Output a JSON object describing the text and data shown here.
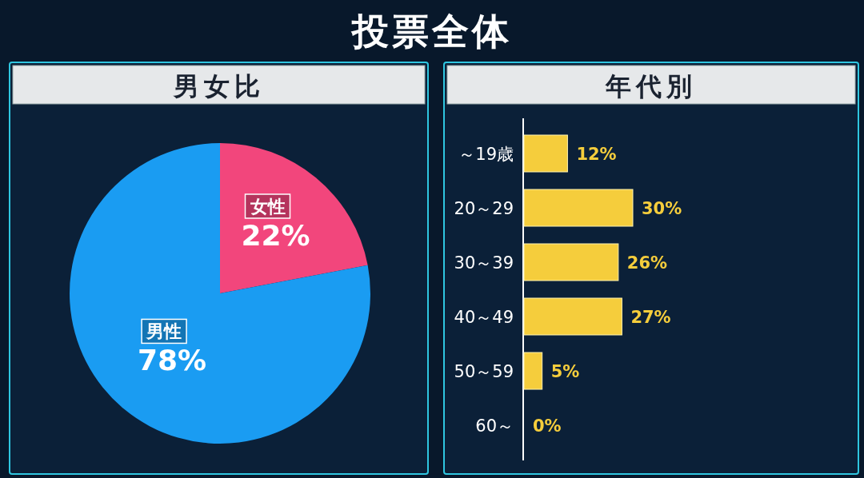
{
  "chart_data": [
    {
      "type": "pie",
      "title": "投票全体",
      "subtitle": "男女比",
      "categories": [
        "女性",
        "男性"
      ],
      "values": [
        22,
        78
      ],
      "colors": [
        "#f2467c",
        "#1a9cf2"
      ],
      "value_labels": [
        "22%",
        "78%"
      ]
    },
    {
      "type": "bar",
      "orientation": "horizontal",
      "subtitle": "年代別",
      "categories": [
        "～19歳",
        "20～29",
        "30～39",
        "40～49",
        "50～59",
        "60～"
      ],
      "values": [
        12,
        30,
        26,
        27,
        5,
        0
      ],
      "color": "#f5cd3c",
      "value_labels": [
        "12%",
        "30%",
        "26%",
        "27%",
        "5%",
        "0%"
      ]
    }
  ]
}
